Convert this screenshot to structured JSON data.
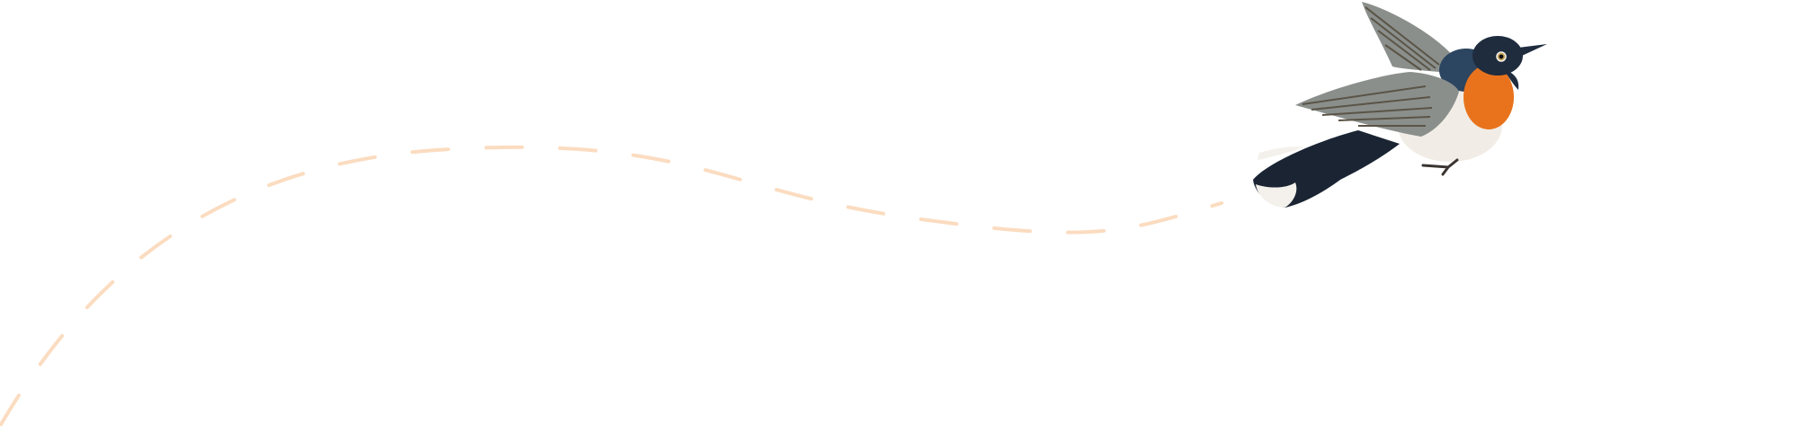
{
  "illustration": {
    "subject": "bird-illustration",
    "path_style": "dashed",
    "colors": {
      "background": "#ffffff",
      "flight_path": "#fbdcc0",
      "throat": "#e8731c",
      "head": "#1f2c3e",
      "back": "#2c4560",
      "wing": "#8b8f8c",
      "wing_dark": "#5a5446",
      "belly": "#f1ede6",
      "tail": "#1a2433",
      "tail_tips": "#f4f1ec"
    }
  }
}
